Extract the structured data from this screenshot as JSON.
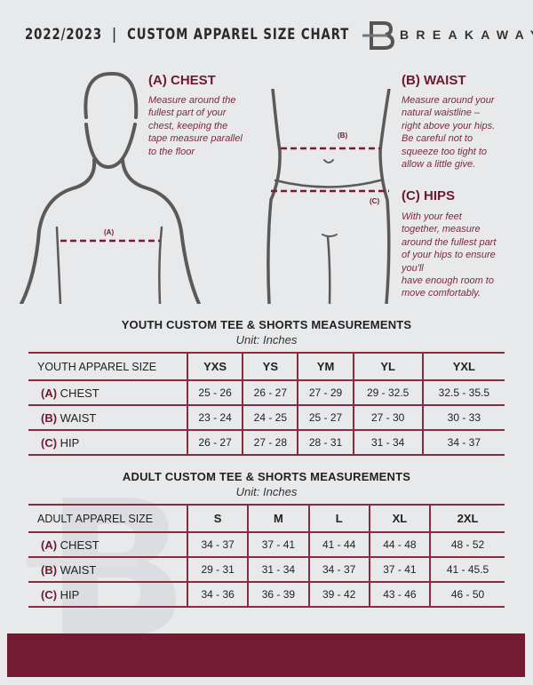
{
  "header": {
    "title": "2022/2023  |  CUSTOM APPAREL SIZE CHART",
    "brand": "BREAKAWAY",
    "logo_letter": "B"
  },
  "colors": {
    "accent": "#721b31",
    "background": "#e8e9eb",
    "figure": "#5a5a5a"
  },
  "guides": {
    "chest": {
      "heading": "(A) CHEST",
      "text": [
        "Measure around the",
        "fullest part of your",
        "chest, keeping the",
        "tape measure parallel",
        "to the floor"
      ],
      "tag": "(A)"
    },
    "waist": {
      "heading": "(B) WAIST",
      "text": [
        "Measure around your",
        "natural waistline –",
        "right above your hips.",
        "Be careful not to",
        "squeeze too tight to",
        "allow a little give."
      ],
      "tag": "(B)"
    },
    "hips": {
      "heading": "(C) HIPS",
      "text": [
        "With your feet",
        "together, measure",
        "around the fullest part",
        "of your hips to ensure",
        "you'll",
        "have enough room to",
        "move comfortably."
      ],
      "tag": "(C)"
    }
  },
  "youth": {
    "title": "YOUTH CUSTOM TEE & SHORTS MEASUREMENTS",
    "unit": "Unit: Inches",
    "size_label": "YOUTH APPAREL SIZE",
    "sizes": [
      "YXS",
      "YS",
      "YM",
      "YL",
      "YXL"
    ],
    "rows": [
      {
        "letter": "(A)",
        "name": "CHEST",
        "values": [
          "25 - 26",
          "26 - 27",
          "27 - 29",
          "29 - 32.5",
          "32.5 - 35.5"
        ]
      },
      {
        "letter": "(B)",
        "name": "WAIST",
        "values": [
          "23 - 24",
          "24 - 25",
          "25 - 27",
          "27 - 30",
          "30 - 33"
        ]
      },
      {
        "letter": "(C)",
        "name": "HIP",
        "values": [
          "26 - 27",
          "27 - 28",
          "28 - 31",
          "31 - 34",
          "34 - 37"
        ]
      }
    ]
  },
  "adult": {
    "title": "ADULT CUSTOM TEE & SHORTS MEASUREMENTS",
    "unit": "Unit: Inches",
    "size_label": "ADULT APPAREL SIZE",
    "sizes": [
      "S",
      "M",
      "L",
      "XL",
      "2XL"
    ],
    "rows": [
      {
        "letter": "(A)",
        "name": "CHEST",
        "values": [
          "34 - 37",
          "37 - 41",
          "41 - 44",
          "44 - 48",
          "48 - 52"
        ]
      },
      {
        "letter": "(B)",
        "name": "WAIST",
        "values": [
          "29 - 31",
          "31 - 34",
          "34 - 37",
          "37 - 41",
          "41 - 45.5"
        ]
      },
      {
        "letter": "(C)",
        "name": "HIP",
        "values": [
          "34 - 36",
          "36 - 39",
          "39 - 42",
          "43 - 46",
          "46 - 50"
        ]
      }
    ]
  }
}
